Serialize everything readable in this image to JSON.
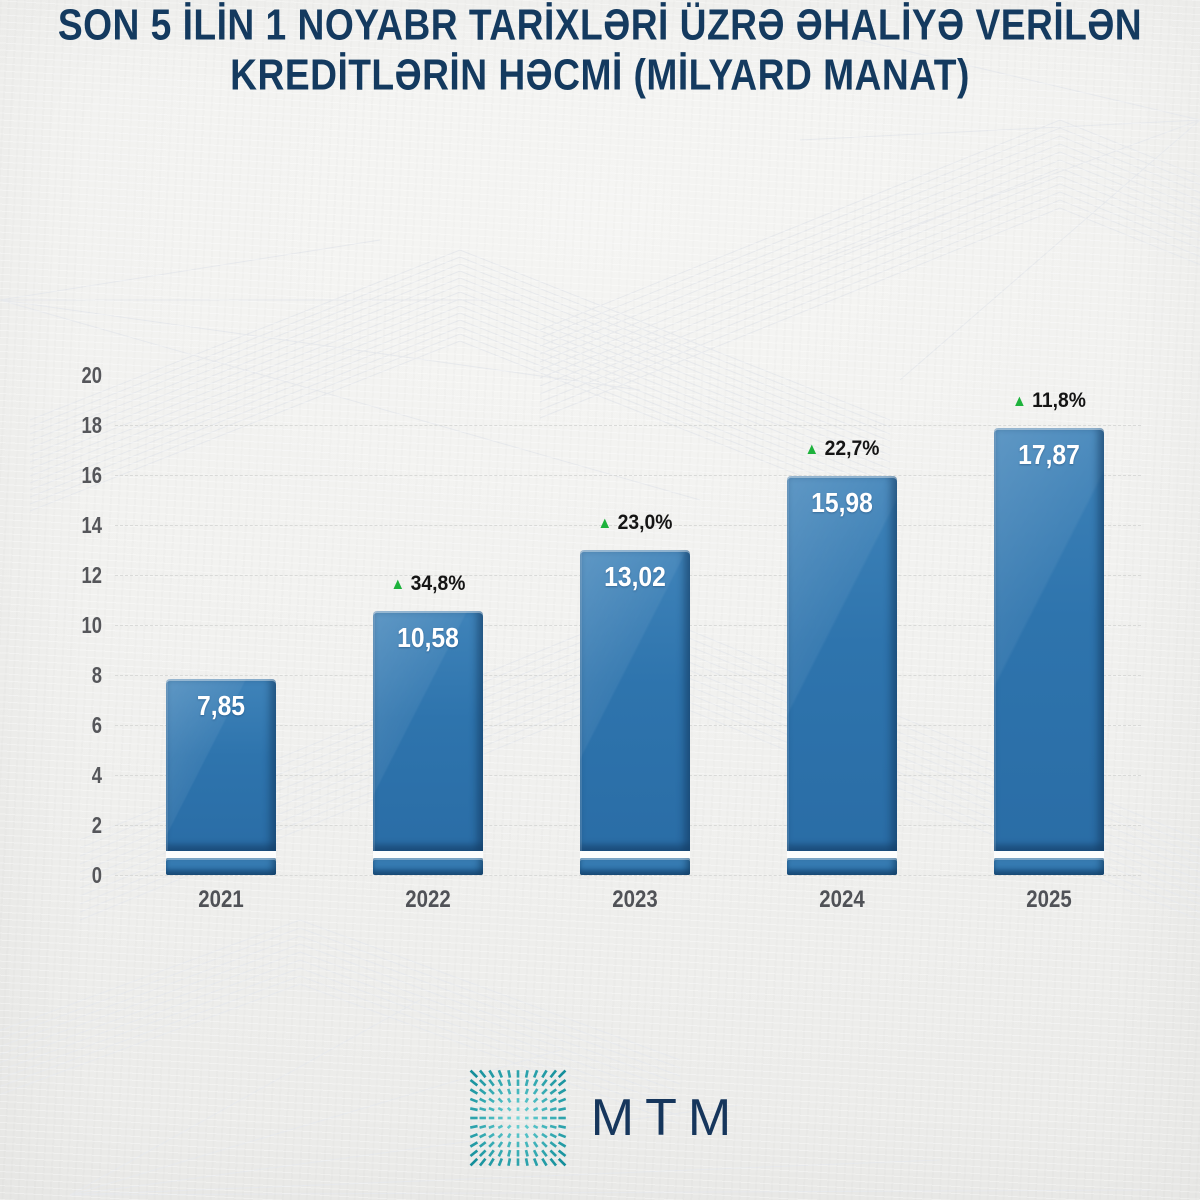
{
  "title": {
    "line1": "SON 5 İLİN 1 NOYABR TARİXLƏRİ ÜZRƏ ƏHALİYƏ VERİLƏN",
    "line2": "KREDİTLƏRİN HƏCMİ (MİLYARD MANAT)"
  },
  "chart_data": {
    "type": "bar",
    "title": "Son 5 ilin 1 noyabr tarixləri üzrə əhaliyə verilən kreditlərin həcmi (milyard manat)",
    "categories": [
      "2021",
      "2022",
      "2023",
      "2024",
      "2025"
    ],
    "values": [
      7.85,
      10.58,
      13.02,
      15.98,
      17.87
    ],
    "value_labels": [
      "7,85",
      "10,58",
      "13,02",
      "15,98",
      "17,87"
    ],
    "growth_labels": [
      null,
      "34,8%",
      "23,0%",
      "22,7%",
      "11,8%"
    ],
    "growth_arrow": "▲",
    "ylim": [
      0,
      20
    ],
    "yticks": [
      0,
      2,
      4,
      6,
      8,
      10,
      12,
      14,
      16,
      18,
      20
    ],
    "grid": "horizontal-dashed",
    "legend_position": "none",
    "xlabel": "",
    "ylabel": ""
  },
  "footer": {
    "logo_text": "MTM",
    "logo_icon": "teal-dash-starburst"
  },
  "colors": {
    "background": "#f1f1ef",
    "title_text": "#143a5f",
    "bar_fill": "#2e74ad",
    "bar_highlight": "#3f83b9",
    "bar_shadow": "#1c5c92",
    "value_text": "#ffffff",
    "growth_text": "#151515",
    "growth_arrow": "#1db23c",
    "axis_text": "#55565a",
    "gridline": "#d9dad8",
    "logo_teal_light": "#6ed6d8",
    "logo_teal_dark": "#128e9a",
    "logo_text": "#16365c"
  }
}
